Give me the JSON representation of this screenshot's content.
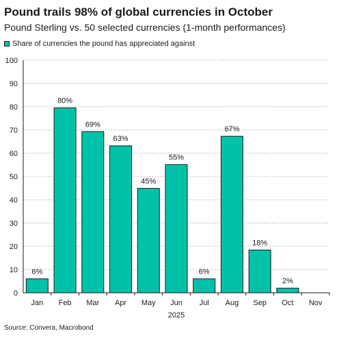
{
  "chart_data": {
    "type": "bar",
    "title": "Pound trails 98% of global currencies in October",
    "subtitle": "Pound Sterling vs. 50 selected currencies (1-month performances)",
    "categories": [
      "Jan",
      "Feb",
      "Mar",
      "Apr",
      "May",
      "Jun",
      "Jul",
      "Aug",
      "Sep",
      "Oct",
      "Nov"
    ],
    "series": [
      {
        "name": "Share of currencies the pound has appreciated against",
        "values": [
          6,
          79.5,
          69.3,
          63.2,
          44.9,
          55.1,
          6,
          67.3,
          18.4,
          2,
          null
        ],
        "data_labels": [
          "6%",
          "80%",
          "69%",
          "63%",
          "45%",
          "55%",
          "6%",
          "67%",
          "18%",
          "2%",
          ""
        ]
      }
    ],
    "xlabel": "2025",
    "ylabel": "",
    "ylim": [
      0,
      100
    ],
    "yticks": [
      "0",
      "10",
      "20",
      "30",
      "40",
      "50",
      "60",
      "70",
      "80",
      "90",
      "100"
    ],
    "grid": true,
    "legend_position": "top-left",
    "bar_color": "#00C2A8",
    "bar_edge_color": "#1a1a1a",
    "source": "Source: Convera, Macrobond"
  }
}
